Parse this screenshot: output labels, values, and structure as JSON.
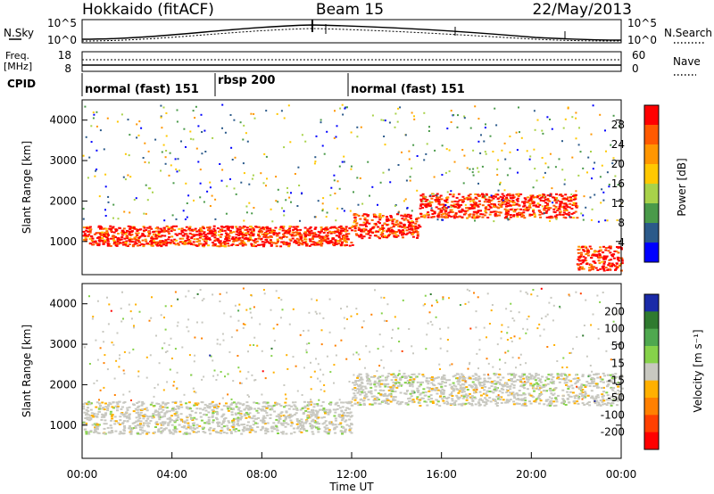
{
  "header": {
    "station": "Hokkaido (fitACF)",
    "beam": "Beam 15",
    "date": "22/May/2013"
  },
  "panels": {
    "noise": {
      "left_label": "N.Sky",
      "left_ticks": [
        "10^5",
        "10^0"
      ],
      "right_ticks": [
        "10^5",
        "10^0"
      ],
      "right_label": "N.Search"
    },
    "freq": {
      "left_label_1": "Freq.",
      "left_label_2": "[MHz]",
      "left_ticks": [
        "18",
        "8"
      ],
      "right_ticks": [
        "60",
        "0"
      ],
      "right_label": "Nave"
    },
    "cpid": {
      "label": "CPID",
      "segments": [
        {
          "label": "normal (fast) 151",
          "start_hour": 0,
          "end_hour": 6
        },
        {
          "label": "rbsp 200",
          "start_hour": 6,
          "end_hour": 12
        },
        {
          "label": "normal (fast) 151",
          "start_hour": 12,
          "end_hour": 24
        }
      ]
    }
  },
  "chart_data": [
    {
      "type": "heatmap",
      "name": "Power",
      "ylabel": "Slant Range [km]",
      "xlim": [
        0,
        24
      ],
      "ylim": [
        180,
        4500
      ],
      "yticks": [
        1000,
        2000,
        3000,
        4000
      ],
      "colorbar": {
        "label": "Power [dB]",
        "ticks": [
          "28",
          "24",
          "20",
          "16",
          "12",
          "8",
          "4"
        ],
        "colors": [
          "#ff0000",
          "#ff5a00",
          "#ff9600",
          "#ffc800",
          "#a8d24a",
          "#4a9a4a",
          "#2b5a8a",
          "#0000ff"
        ]
      },
      "bands": [
        {
          "start_hour": 0,
          "end_hour": 12,
          "range_km": [
            900,
            1400
          ],
          "power_db": 24
        },
        {
          "start_hour": 12,
          "end_hour": 15,
          "range_km": [
            1100,
            1700
          ],
          "power_db": 26
        },
        {
          "start_hour": 15,
          "end_hour": 22,
          "range_km": [
            1600,
            2200
          ],
          "power_db": 27
        },
        {
          "start_hour": 22,
          "end_hour": 24,
          "range_km": [
            300,
            900
          ],
          "power_db": 28
        }
      ]
    },
    {
      "type": "heatmap",
      "name": "Velocity",
      "xlabel": "Time UT",
      "ylabel": "Slant Range [km]",
      "xlim": [
        0,
        24
      ],
      "ylim": [
        180,
        4500
      ],
      "xticks": [
        "00:00",
        "04:00",
        "08:00",
        "12:00",
        "16:00",
        "20:00",
        "00:00"
      ],
      "yticks": [
        1000,
        2000,
        3000,
        4000
      ],
      "colorbar": {
        "label": "Velocity [m s⁻¹]",
        "ticks": [
          "200",
          "100",
          "50",
          "15",
          "-15",
          "-50",
          "-100",
          "-200"
        ],
        "colors": [
          "#1a2aa8",
          "#2f7a2f",
          "#4fa84f",
          "#86d24a",
          "#c8c8c0",
          "#ffb000",
          "#ff8000",
          "#ff4000",
          "#ff0000"
        ]
      },
      "bands": [
        {
          "start_hour": 0,
          "end_hour": 12,
          "range_km": [
            800,
            1600
          ],
          "velocity_ms": 0
        },
        {
          "start_hour": 12,
          "end_hour": 24,
          "range_km": [
            1500,
            2300
          ],
          "velocity_ms": 0
        }
      ]
    }
  ]
}
